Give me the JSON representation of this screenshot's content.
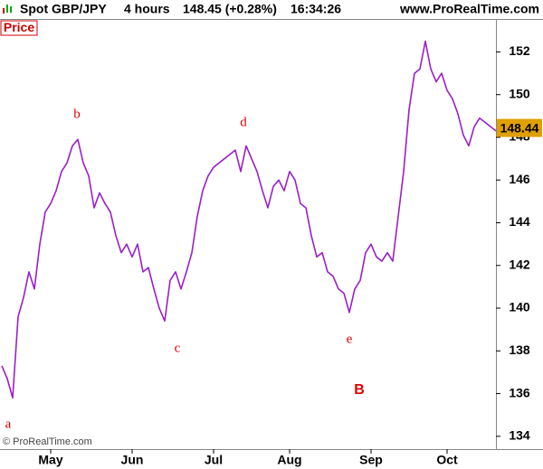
{
  "header": {
    "instrument": "Spot GBP/JPY",
    "timeframe": "4 hours",
    "quote": "148.45 (+0.28%)",
    "time": "16:34:26",
    "site": "www.ProRealTime.com"
  },
  "chart_data": {
    "type": "line",
    "panel_label": "Price",
    "copyright": "© ProRealTime.com",
    "categories": [
      null,
      null,
      null,
      null,
      null,
      null,
      null,
      null,
      null,
      "May",
      null,
      null,
      null,
      null,
      null,
      null,
      null,
      null,
      null,
      null,
      null,
      null,
      null,
      null,
      "Jun",
      null,
      null,
      null,
      null,
      null,
      null,
      null,
      null,
      null,
      null,
      null,
      null,
      null,
      null,
      "Jul",
      null,
      null,
      null,
      null,
      null,
      null,
      null,
      null,
      null,
      null,
      null,
      null,
      null,
      "Aug",
      null,
      null,
      null,
      null,
      null,
      null,
      null,
      null,
      null,
      null,
      null,
      null,
      null,
      null,
      "Sep",
      null,
      null,
      null,
      null,
      null,
      null,
      null,
      null,
      null,
      null,
      null,
      null,
      null,
      "Oct",
      null,
      null,
      null,
      null,
      null,
      null,
      null,
      null,
      null
    ],
    "series": [
      {
        "color": "#9a1fc8",
        "values": [
          137.3,
          136.7,
          135.8,
          139.6,
          140.5,
          141.7,
          140.9,
          143.0,
          144.5,
          144.9,
          145.5,
          146.4,
          146.8,
          147.6,
          147.9,
          146.8,
          146.2,
          144.7,
          145.4,
          144.9,
          144.5,
          143.4,
          142.6,
          143.0,
          142.4,
          143.0,
          141.7,
          141.9,
          140.9,
          140.0,
          139.4,
          141.3,
          141.7,
          140.9,
          141.7,
          142.6,
          144.3,
          145.5,
          146.2,
          146.6,
          146.8,
          147.0,
          147.2,
          147.4,
          146.4,
          147.6,
          147.0,
          146.4,
          145.5,
          144.7,
          145.7,
          146.0,
          145.5,
          146.4,
          146.0,
          144.9,
          144.7,
          143.4,
          142.4,
          142.6,
          141.7,
          141.5,
          140.9,
          140.7,
          139.8,
          140.9,
          141.3,
          142.6,
          143.0,
          142.4,
          142.2,
          142.6,
          142.2,
          144.3,
          146.4,
          149.3,
          151.0,
          151.2,
          152.5,
          151.2,
          150.6,
          151.0,
          150.2,
          149.8,
          149.1,
          148.1,
          147.6,
          148.5,
          148.9,
          148.7,
          148.5,
          148.3
        ]
      }
    ],
    "ylim": [
      133.4,
      153.5
    ],
    "yticks": [
      134,
      136,
      138,
      140,
      142,
      144,
      146,
      148,
      150,
      152
    ],
    "last_price": 148.44,
    "last_price_color": "#e0a000",
    "annotations": [
      {
        "text": "a"
      },
      {
        "text": "b"
      },
      {
        "text": "c"
      },
      {
        "text": "d"
      },
      {
        "text": "e"
      },
      {
        "text": "B"
      }
    ]
  }
}
